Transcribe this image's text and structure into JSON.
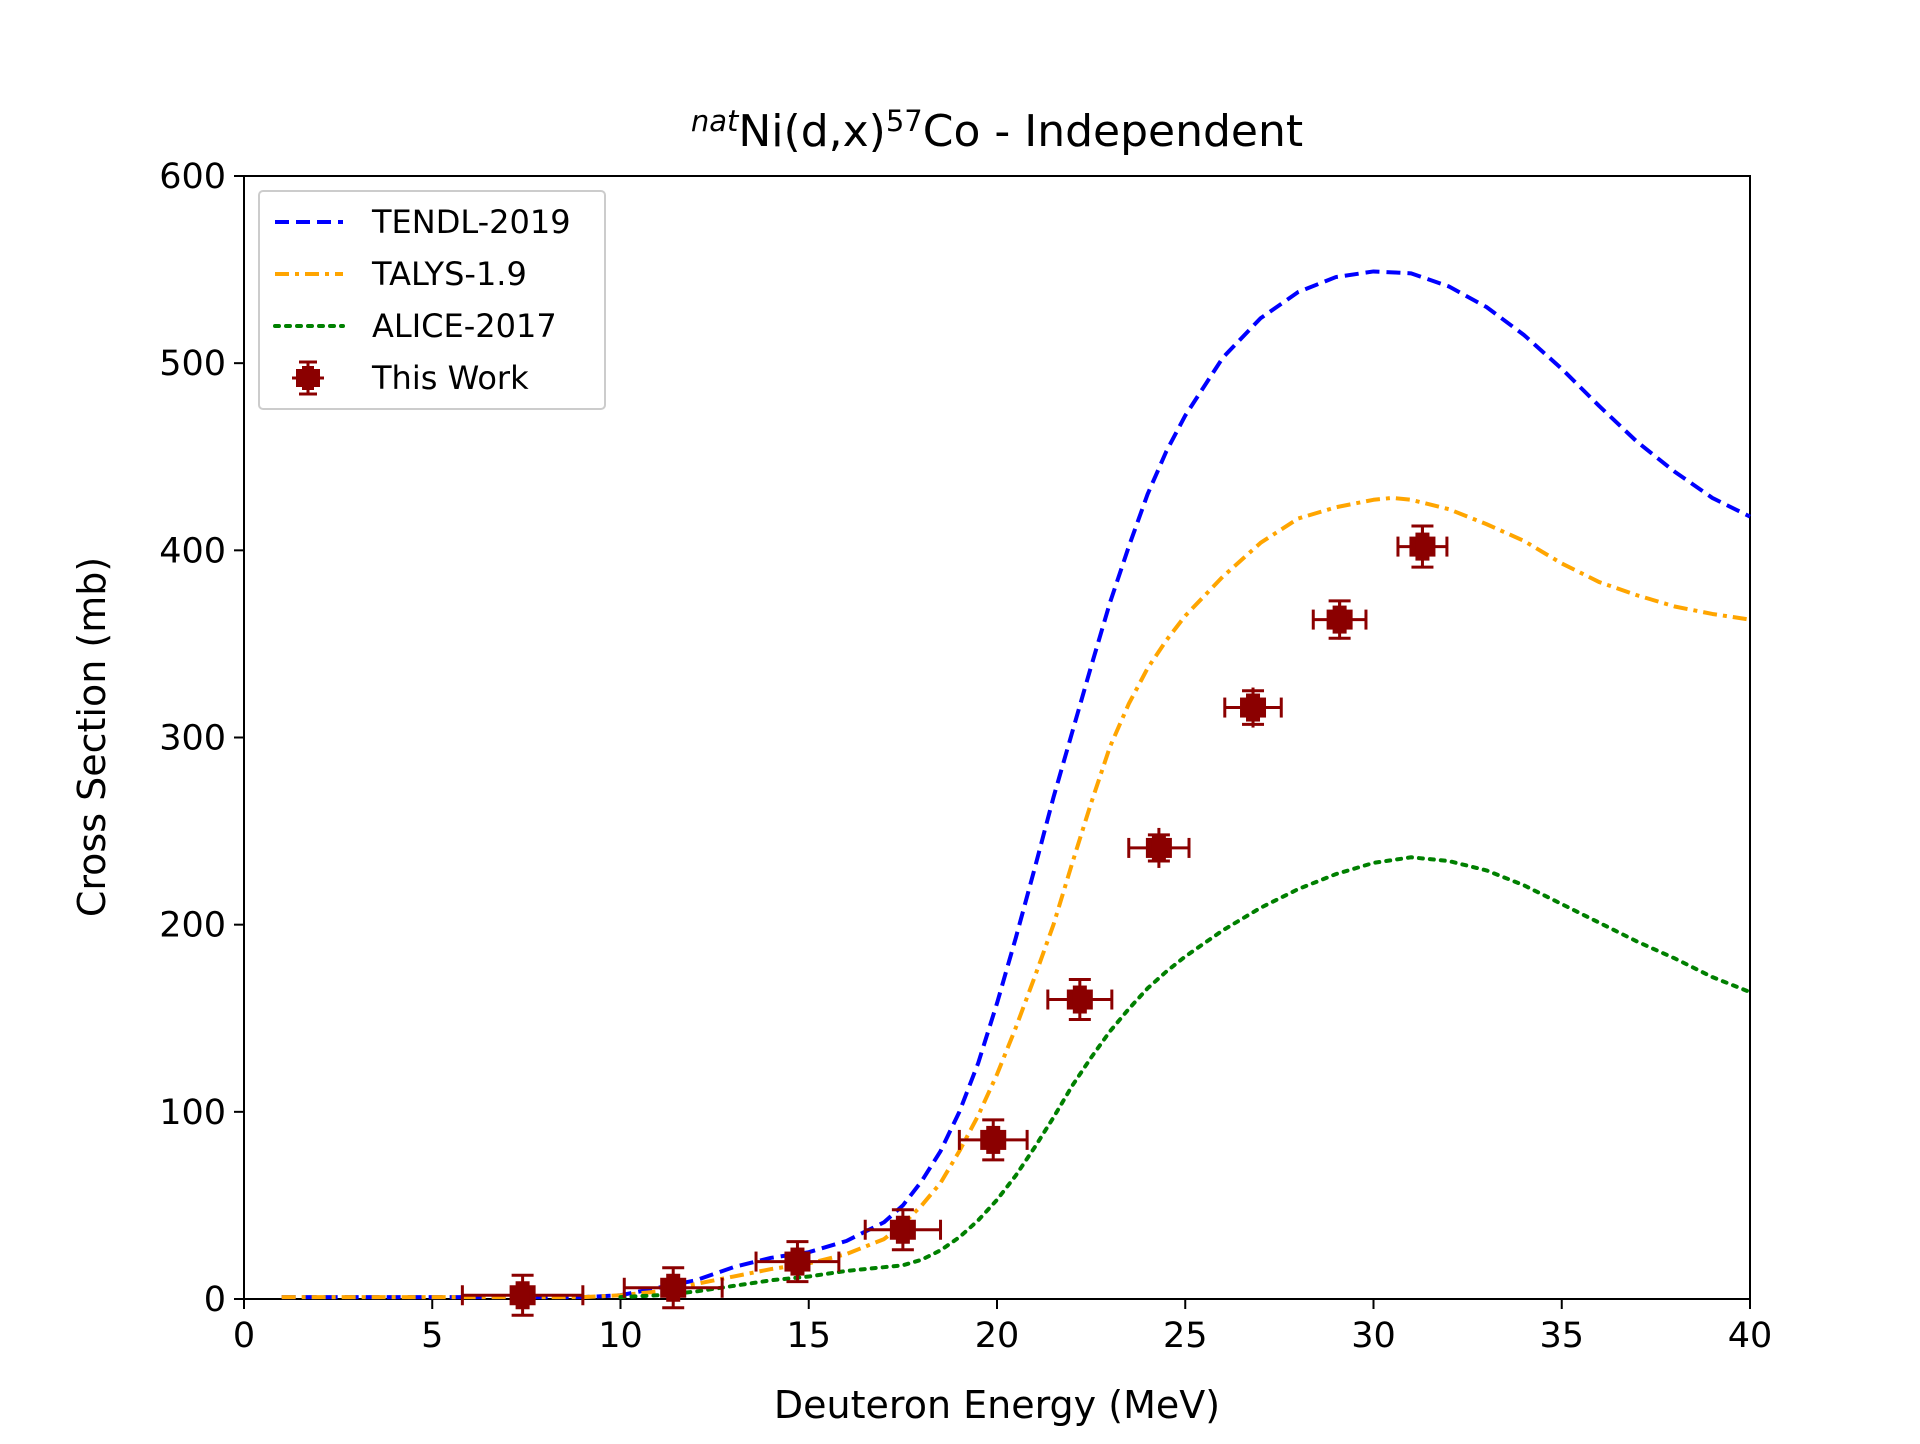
{
  "chart_data": {
    "type": "line",
    "title": {
      "prefix_sup": "nat",
      "target": "Ni(d,x)",
      "product_sup": "57",
      "product": "Co - Independent"
    },
    "xlabel": "Deuteron Energy (MeV)",
    "ylabel": "Cross Section (mb)",
    "xlim": [
      0,
      40
    ],
    "ylim": [
      0,
      600
    ],
    "xticks": [
      "0",
      "5",
      "10",
      "15",
      "20",
      "25",
      "30",
      "35",
      "40"
    ],
    "yticks": [
      "0",
      "100",
      "200",
      "300",
      "400",
      "500",
      "600"
    ],
    "grid": false,
    "legend_position": "top-left",
    "series": [
      {
        "name": "TENDL-2019",
        "color": "#0000ff",
        "style": "dashed",
        "x": [
          1,
          2,
          4,
          6,
          8,
          9,
          10,
          11,
          12,
          13,
          14,
          15,
          16,
          17,
          17.5,
          18,
          18.5,
          19,
          19.5,
          20,
          20.5,
          21,
          21.5,
          22,
          22.5,
          23,
          23.5,
          24,
          24.5,
          25,
          26,
          27,
          28,
          29,
          30,
          31,
          32,
          33,
          34,
          35,
          36,
          37,
          38,
          39,
          40
        ],
        "y": [
          1,
          1,
          1,
          1,
          1,
          1,
          2,
          6,
          10,
          17,
          22,
          25,
          31,
          41,
          50,
          63,
          79,
          100,
          126,
          158,
          193,
          230,
          268,
          303,
          338,
          372,
          402,
          430,
          453,
          472,
          503,
          524,
          538,
          546,
          549,
          548,
          541,
          530,
          515,
          497,
          477,
          458,
          442,
          428,
          418
        ]
      },
      {
        "name": "TALYS-1.9",
        "color": "#ffa500",
        "style": "dashdot",
        "x": [
          1,
          2,
          4,
          6,
          8,
          9,
          10,
          11,
          12,
          13,
          14,
          15,
          16,
          17,
          17.5,
          18,
          18.5,
          19,
          19.5,
          20,
          20.5,
          21,
          21.5,
          22,
          22.5,
          23,
          23.5,
          24,
          24.5,
          25,
          26,
          27,
          28,
          29,
          30,
          30.5,
          31,
          32,
          33,
          34,
          35,
          36,
          37,
          38,
          39,
          40
        ],
        "y": [
          1,
          1,
          1,
          1,
          1,
          1,
          2,
          4,
          8,
          12,
          16,
          19,
          24,
          32,
          40,
          50,
          62,
          79,
          98,
          120,
          145,
          172,
          200,
          233,
          265,
          295,
          318,
          337,
          352,
          365,
          386,
          404,
          417,
          423,
          427,
          428,
          427,
          422,
          414,
          405,
          393,
          383,
          376,
          370,
          366,
          363
        ]
      },
      {
        "name": "ALICE-2017",
        "color": "#008000",
        "style": "dotted",
        "x": [
          10,
          11,
          12,
          13,
          14,
          15,
          16,
          17,
          17.5,
          18,
          18.5,
          19,
          19.5,
          20,
          20.5,
          21,
          21.5,
          22,
          22.5,
          23,
          23.5,
          24,
          24.5,
          25,
          26,
          27,
          28,
          29,
          30,
          31,
          32,
          33,
          34,
          35,
          36,
          37,
          38,
          39,
          40
        ],
        "y": [
          1,
          2,
          4,
          7,
          10,
          12,
          15,
          17,
          18,
          21,
          26,
          33,
          42,
          53,
          66,
          81,
          97,
          114,
          129,
          143,
          155,
          166,
          175,
          183,
          197,
          209,
          219,
          227,
          233,
          236,
          234,
          229,
          221,
          211,
          201,
          191,
          182,
          172,
          164
        ]
      },
      {
        "name": "This Work",
        "color": "#8b0000",
        "style": "errorbar",
        "x": [
          7.4,
          11.4,
          14.7,
          17.5,
          19.9,
          22.2,
          24.3,
          26.8,
          29.1,
          31.3
        ],
        "y": [
          2,
          6,
          20,
          37,
          85,
          160,
          241,
          316,
          363,
          402
        ],
        "xerr": [
          1.6,
          1.3,
          1.1,
          1.0,
          0.9,
          0.85,
          0.8,
          0.75,
          0.7,
          0.65
        ],
        "yerr": [
          1,
          1,
          2,
          3,
          5,
          6,
          7,
          9,
          10,
          11
        ]
      }
    ]
  }
}
